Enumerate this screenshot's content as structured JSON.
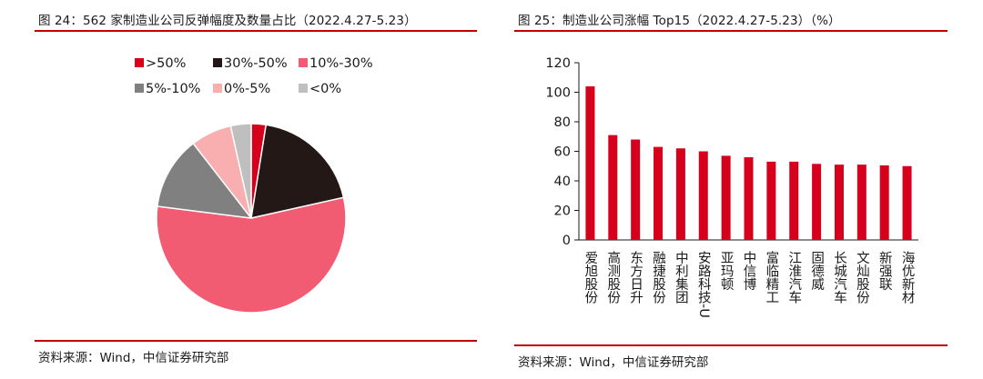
{
  "left": {
    "title": "图 24：562 家制造业公司反弹幅度及数量占比（2022.4.27-5.23）",
    "source": "资料来源：Wind，中信证券研究部"
  },
  "right": {
    "title": "图 25：制造业公司涨幅 Top15（2022.4.27-5.23）（%）",
    "source": "资料来源：Wind，中信证券研究部"
  },
  "chart_data": [
    {
      "type": "pie",
      "title": "",
      "legend_placement": "top",
      "slices": [
        {
          "label": ">50%",
          "value": 2.5,
          "color": "#d7001c"
        },
        {
          "label": "30%-50%",
          "value": 19.0,
          "color": "#231815"
        },
        {
          "label": "10%-30%",
          "value": 55.5,
          "color": "#f25c72"
        },
        {
          "label": "5%-10%",
          "value": 12.5,
          "color": "#808080"
        },
        {
          "label": "0%-5%",
          "value": 7.0,
          "color": "#f9aeb0"
        },
        {
          "label": "<0%",
          "value": 3.5,
          "color": "#bfbfbf"
        }
      ]
    },
    {
      "type": "bar",
      "title": "",
      "xlabel": "",
      "ylabel": "",
      "ylim": [
        0,
        120
      ],
      "yticks": [
        0,
        20,
        40,
        60,
        80,
        100,
        120
      ],
      "grid": false,
      "bar_color": "#d7001c",
      "categories": [
        "爱旭股份",
        "高测股份",
        "东方日升",
        "融捷股份",
        "中利集团",
        "安路科技-U",
        "亚玛顿",
        "中信博",
        "富临精工",
        "江淮汽车",
        "固德威",
        "长城汽车",
        "文灿股份",
        "新强联",
        "海优新材"
      ],
      "values": [
        104,
        71,
        68,
        63,
        62,
        60,
        57,
        56,
        53,
        53,
        51.5,
        51,
        51,
        50.5,
        50
      ]
    }
  ]
}
